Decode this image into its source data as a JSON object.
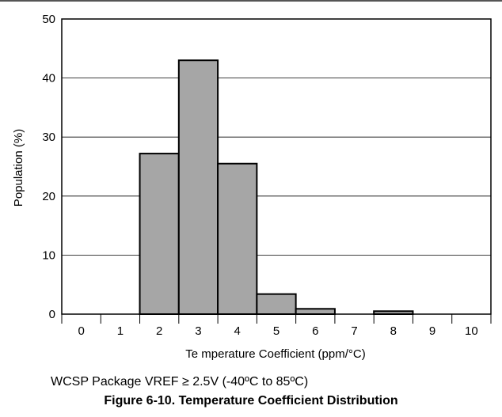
{
  "chart_data": {
    "type": "bar",
    "categories": [
      "0",
      "1",
      "2",
      "3",
      "4",
      "5",
      "6",
      "7",
      "8",
      "9",
      "10"
    ],
    "values": [
      0,
      0,
      27.2,
      43,
      25.5,
      3.4,
      0.9,
      0,
      0.5,
      0,
      0
    ],
    "xlabel": "Te mperature Coefficient (ppm/°C)",
    "ylabel": "Population (%)",
    "ylim": [
      0,
      50
    ],
    "yticks": [
      0,
      10,
      20,
      30,
      40,
      50
    ],
    "grid": true,
    "bar_color": "#a6a6a6",
    "bar_edge_color": "#000000"
  },
  "subtitle": "WCSP Package VREF ≥ 2.5V (-40ºC to 85ºC)",
  "title": "Figure 6-10. Temperature Coefficient Distribution"
}
